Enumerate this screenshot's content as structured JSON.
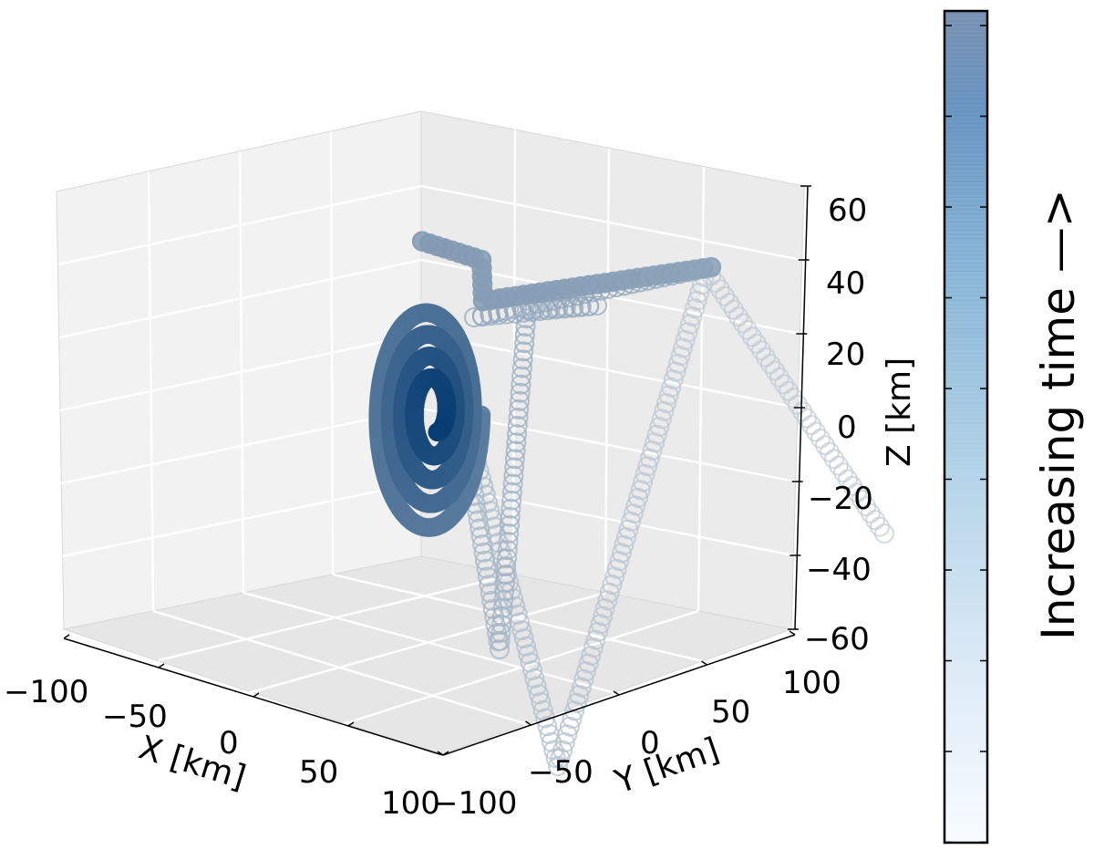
{
  "chart_data": {
    "type": "scatter",
    "projection": "3d",
    "marker": "circle (hollow, colored by time)",
    "xlabel": "X [km]",
    "ylabel": "Y [km]",
    "zlabel": "Z [km]",
    "xlim": [
      -100,
      100
    ],
    "ylim": [
      -100,
      100
    ],
    "zlim": [
      -60,
      60
    ],
    "x_ticks": [
      -100,
      -50,
      0,
      50,
      100
    ],
    "y_ticks": [
      -100,
      -50,
      0,
      50,
      100
    ],
    "z_ticks": [
      -60,
      -40,
      -20,
      0,
      20,
      40,
      60
    ],
    "x_tick_labels": [
      "−100",
      "−50",
      "0",
      "50",
      "100"
    ],
    "y_tick_labels": [
      "−100",
      "−50",
      "0",
      "50",
      "100"
    ],
    "z_tick_labels": [
      "−60",
      "−40",
      "−20",
      "0",
      "20",
      "40",
      "60"
    ],
    "grid": true,
    "colorbar": {
      "label": "Increasing time —>",
      "colormap": "Blues",
      "orientation": "vertical"
    },
    "colors": {
      "early": "#c4cdd6",
      "mid": "#9cb4cc",
      "late": "#2a6aa6",
      "latest": "#083d73"
    },
    "trajectory_description": "A particle trajectory that enters diagonally from the high-Y side, zig-zags through several straight sweeping segments, then spirals into a tight gyrating coil near X≈0, Y≈-20, Z≈0 while the color darkens with increasing time."
  }
}
